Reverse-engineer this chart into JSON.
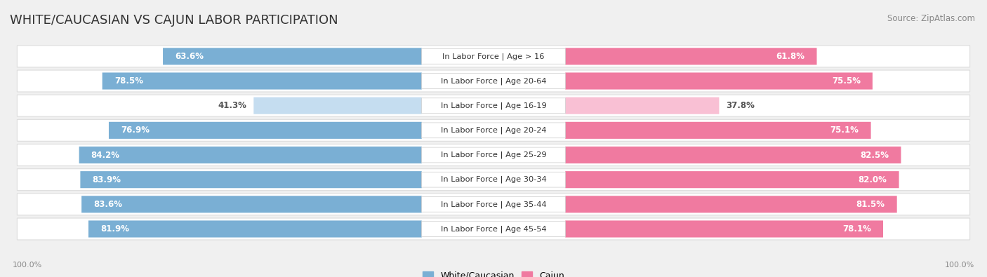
{
  "title": "WHITE/CAUCASIAN VS CAJUN LABOR PARTICIPATION",
  "source": "Source: ZipAtlas.com",
  "categories": [
    "In Labor Force | Age > 16",
    "In Labor Force | Age 20-64",
    "In Labor Force | Age 16-19",
    "In Labor Force | Age 20-24",
    "In Labor Force | Age 25-29",
    "In Labor Force | Age 30-34",
    "In Labor Force | Age 35-44",
    "In Labor Force | Age 45-54"
  ],
  "white_values": [
    63.6,
    78.5,
    41.3,
    76.9,
    84.2,
    83.9,
    83.6,
    81.9
  ],
  "cajun_values": [
    61.8,
    75.5,
    37.8,
    75.1,
    82.5,
    82.0,
    81.5,
    78.1
  ],
  "white_color": "#7aafd4",
  "cajun_color": "#f07aa0",
  "white_color_light": "#c5ddf0",
  "cajun_color_light": "#f9c0d4",
  "bg_color": "#f0f0f0",
  "row_bg": "#ffffff",
  "max_value": 100.0,
  "bar_height": 0.68,
  "title_fontsize": 13,
  "label_fontsize": 8.2,
  "value_fontsize": 8.5,
  "axis_label_fontsize": 8,
  "legend_fontsize": 9
}
